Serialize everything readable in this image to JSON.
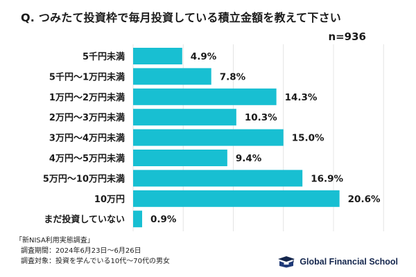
{
  "title": "Q. つみたて投資枠で毎月投資している積立金額を教えて下さい",
  "sample_size": "n=936",
  "chart_data": {
    "type": "bar",
    "orientation": "horizontal",
    "categories": [
      "5千円未満",
      "5千円〜1万円未満",
      "1万円〜2万円未満",
      "2万円〜3万円未満",
      "3万円〜4万円未満",
      "4万円〜5万円未満",
      "5万円〜10万円未満",
      "10万円",
      "まだ投資していない"
    ],
    "values": [
      4.9,
      7.8,
      14.3,
      10.3,
      15.0,
      9.4,
      16.9,
      20.6,
      0.9
    ],
    "value_labels": [
      "4.9%",
      "7.8%",
      "14.3%",
      "10.3%",
      "15.0%",
      "9.4%",
      "16.9%",
      "20.6%",
      "0.9%"
    ],
    "unit": "%",
    "xlim": [
      0,
      25
    ],
    "gridlines": true,
    "bar_color": "#18bfd2"
  },
  "source": {
    "name": "「新NISA利用実態調査」",
    "period": "調査期間：2024年6月23日〜6月26日",
    "target": "調査対象：投資を学んでいる10代〜70代の男女"
  },
  "logo": {
    "text": "Global Financial School",
    "color": "#14264d"
  }
}
